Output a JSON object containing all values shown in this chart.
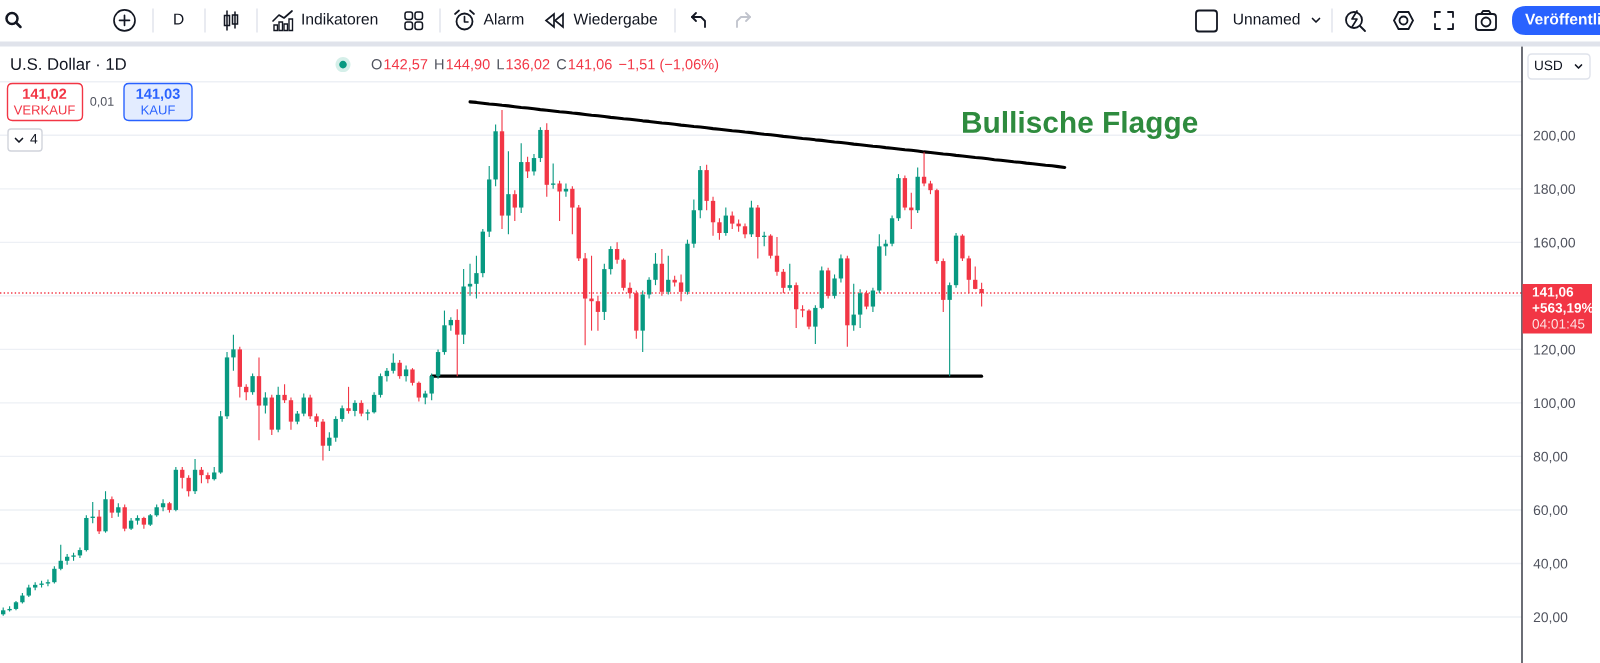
{
  "chart_data": {
    "type": "candlestick",
    "title": "U.S. Dollar · 1D",
    "annotations": [
      "D",
      "Indikatoren",
      "Alarm",
      "Wiedergabe",
      "Unnamed",
      "Veröffentli",
      "O",
      "142,57",
      "H",
      "144,90",
      "L",
      "136,02",
      "C",
      "141,06",
      "−1,51 (−1,06%)",
      "141,02",
      "VERKAUF",
      "0,01",
      "141,03",
      "KAUF",
      "4",
      "Bullische Flagge",
      "USD",
      "+563,19%",
      "04:01:45"
    ],
    "categories": [
      null,
      null,
      null,
      null,
      null,
      null,
      null,
      null,
      null,
      null,
      null,
      null,
      null,
      null,
      null,
      null,
      null,
      null,
      null,
      null,
      null,
      null,
      null,
      null,
      null,
      null,
      null,
      null,
      null,
      null,
      null,
      null,
      null,
      null,
      null,
      null,
      null,
      null,
      null,
      null,
      null,
      null,
      null,
      null,
      null,
      null,
      null,
      null,
      null,
      null,
      null,
      null,
      null,
      null,
      null,
      null,
      null,
      null,
      null,
      null,
      null,
      null,
      null,
      null,
      null,
      null,
      null,
      null,
      null,
      null,
      null,
      null,
      null,
      null,
      null,
      null,
      null,
      null,
      null,
      null,
      null,
      null,
      null,
      null,
      null,
      null,
      null,
      null,
      null,
      null,
      null,
      null,
      null,
      null,
      null,
      null,
      null,
      null,
      null,
      null,
      null,
      null,
      null,
      null,
      null,
      null,
      null,
      null,
      null,
      null,
      null,
      null,
      null,
      null,
      null,
      null,
      null,
      null,
      null,
      null,
      null,
      null,
      null,
      null,
      null,
      null,
      null,
      null,
      null,
      null,
      null,
      null,
      null,
      null,
      null,
      null,
      null,
      null,
      null,
      null,
      null,
      null,
      null,
      null,
      null,
      null,
      null,
      null,
      null,
      null,
      null,
      null,
      null,
      null,
      null,
      null,
      null,
      null,
      null,
      null,
      null,
      null,
      null,
      null,
      null,
      null,
      null,
      null,
      null,
      null,
      null,
      null,
      null,
      null,
      null,
      null,
      null,
      null,
      null,
      null,
      null,
      null,
      null,
      null,
      null,
      null,
      null,
      null,
      null,
      null,
      null,
      null,
      null,
      null,
      null,
      null,
      null,
      null,
      null,
      null,
      null,
      null,
      null,
      null,
      null,
      null,
      null,
      null,
      null,
      null,
      null,
      null,
      null,
      null,
      null,
      null,
      null,
      null,
      null,
      null,
      null,
      null,
      null,
      null,
      null,
      null,
      null,
      null,
      null,
      null,
      null,
      null,
      null,
      null,
      null,
      null,
      null,
      null
    ],
    "ohlc": [
      [
        21,
        23.5,
        20.5,
        22.5
      ],
      [
        22.5,
        24,
        22,
        23
      ],
      [
        23,
        26,
        22.5,
        25.5
      ],
      [
        25.5,
        29,
        25,
        28
      ],
      [
        28,
        32,
        27.5,
        31
      ],
      [
        31,
        33,
        30,
        32
      ],
      [
        32,
        33.5,
        31,
        32.5
      ],
      [
        32.5,
        34,
        31.5,
        33
      ],
      [
        33,
        39,
        32.5,
        38
      ],
      [
        38,
        47,
        37.5,
        41
      ],
      [
        41,
        43.5,
        39.5,
        42.5
      ],
      [
        42.5,
        44,
        41,
        43
      ],
      [
        43,
        46,
        42,
        45
      ],
      [
        45,
        58,
        44.5,
        57
      ],
      [
        57,
        63,
        55,
        57.5
      ],
      [
        57.5,
        60,
        51,
        52
      ],
      [
        52,
        67,
        51.5,
        64
      ],
      [
        64,
        65,
        57,
        59
      ],
      [
        59,
        62.5,
        57.5,
        61
      ],
      [
        61,
        62,
        52,
        53
      ],
      [
        53,
        57,
        52.5,
        56
      ],
      [
        56,
        58,
        54.5,
        57
      ],
      [
        57,
        57.5,
        53,
        54.5
      ],
      [
        54.5,
        58.5,
        54,
        58
      ],
      [
        58,
        62,
        57.5,
        61
      ],
      [
        61,
        64,
        59.5,
        62.5
      ],
      [
        62.5,
        63,
        59,
        60
      ],
      [
        60,
        76,
        59.5,
        75
      ],
      [
        75,
        76,
        68,
        72
      ],
      [
        72,
        73,
        65,
        67
      ],
      [
        67,
        79,
        66,
        75
      ],
      [
        75,
        76,
        70,
        73
      ],
      [
        73,
        74,
        70,
        71.5
      ],
      [
        71.5,
        76,
        71,
        74
      ],
      [
        74,
        97,
        73.5,
        95
      ],
      [
        95,
        119,
        94,
        117
      ],
      [
        117,
        125.5,
        112,
        120
      ],
      [
        120,
        121,
        102,
        106
      ],
      [
        106,
        107,
        101,
        104
      ],
      [
        104,
        111,
        103,
        110
      ],
      [
        110,
        117,
        86,
        99
      ],
      [
        99,
        104,
        96,
        102
      ],
      [
        102,
        103,
        88,
        90
      ],
      [
        90,
        106,
        89,
        103
      ],
      [
        103,
        107,
        100,
        101
      ],
      [
        101,
        102,
        90,
        93
      ],
      [
        93,
        97,
        92,
        96
      ],
      [
        96,
        103.5,
        95,
        102
      ],
      [
        102,
        103,
        94,
        95
      ],
      [
        95,
        96,
        91,
        93
      ],
      [
        93,
        94,
        78.5,
        84
      ],
      [
        84,
        89,
        82,
        87
      ],
      [
        87,
        95,
        85.5,
        94
      ],
      [
        94,
        99,
        93,
        98
      ],
      [
        98,
        106,
        96,
        97
      ],
      [
        97,
        101,
        95,
        100
      ],
      [
        100,
        101,
        95,
        96
      ],
      [
        96,
        97.5,
        93.5,
        96.5
      ],
      [
        96.5,
        104,
        96,
        103
      ],
      [
        103,
        111,
        102,
        110
      ],
      [
        110,
        113,
        108,
        112
      ],
      [
        112,
        118.5,
        111,
        115
      ],
      [
        115,
        116,
        109,
        110
      ],
      [
        110,
        114,
        108,
        112.5
      ],
      [
        112.5,
        113,
        106.5,
        107.5
      ],
      [
        107.5,
        108,
        100.5,
        102
      ],
      [
        102,
        104.5,
        99.5,
        103.5
      ],
      [
        103.5,
        111,
        101,
        110
      ],
      [
        110,
        120,
        109,
        119
      ],
      [
        119,
        134.5,
        118,
        129
      ],
      [
        129,
        132,
        127,
        131
      ],
      [
        131,
        135,
        110,
        125.5
      ],
      [
        125.5,
        150,
        122,
        143.5
      ],
      [
        143.5,
        152,
        140,
        144.5
      ],
      [
        144.5,
        155,
        139,
        148.5
      ],
      [
        148.5,
        165,
        147,
        164
      ],
      [
        164,
        188.5,
        162,
        183.5
      ],
      [
        183.5,
        204,
        181,
        201.5
      ],
      [
        201.5,
        209.5,
        165,
        170
      ],
      [
        170,
        194,
        163,
        178
      ],
      [
        178,
        179.5,
        168,
        173
      ],
      [
        173,
        197,
        171,
        190
      ],
      [
        190,
        192,
        184,
        186.5
      ],
      [
        186.5,
        193,
        185,
        191.5
      ],
      [
        191.5,
        203,
        190,
        202
      ],
      [
        202,
        204.5,
        177,
        181.5
      ],
      [
        181.5,
        189.5,
        180,
        182
      ],
      [
        182,
        183,
        168,
        179
      ],
      [
        179,
        182,
        177,
        180
      ],
      [
        180,
        181,
        163,
        173
      ],
      [
        173,
        174,
        153,
        154
      ],
      [
        154,
        156,
        121.5,
        139
      ],
      [
        139,
        155,
        127,
        138
      ],
      [
        138,
        140,
        127,
        134
      ],
      [
        134,
        152,
        131,
        150
      ],
      [
        150,
        158.5,
        148,
        157.5
      ],
      [
        157.5,
        160,
        152,
        153.5
      ],
      [
        153.5,
        154,
        142,
        143
      ],
      [
        143,
        145,
        139,
        141
      ],
      [
        141,
        142,
        124,
        127
      ],
      [
        127,
        142,
        119,
        140.5
      ],
      [
        140.5,
        147,
        139,
        146
      ],
      [
        146,
        156,
        144,
        152
      ],
      [
        152,
        157.5,
        140,
        141.5
      ],
      [
        141.5,
        155,
        140.5,
        146
      ],
      [
        146,
        147.5,
        143.5,
        145
      ],
      [
        145,
        148,
        138,
        141.5
      ],
      [
        141.5,
        161,
        140.5,
        159.5
      ],
      [
        159.5,
        176,
        158,
        172
      ],
      [
        172,
        188.5,
        169,
        187
      ],
      [
        187,
        189,
        172,
        175.5
      ],
      [
        175.5,
        177,
        162.5,
        167.5
      ],
      [
        167.5,
        169,
        161,
        163.5
      ],
      [
        163.5,
        173,
        162.5,
        170
      ],
      [
        170,
        171.5,
        165,
        167
      ],
      [
        167,
        168.5,
        164,
        166
      ],
      [
        166,
        167,
        161.5,
        163
      ],
      [
        163,
        175.5,
        162,
        173
      ],
      [
        173,
        174,
        154,
        162
      ],
      [
        162,
        164,
        158.5,
        162.5
      ],
      [
        162.5,
        163,
        154,
        155
      ],
      [
        155,
        162,
        147.5,
        149
      ],
      [
        149,
        150,
        141,
        143
      ],
      [
        143,
        152,
        142,
        144
      ],
      [
        144,
        145,
        128,
        135
      ],
      [
        135,
        136.5,
        132,
        134.5
      ],
      [
        134.5,
        135,
        127.5,
        128.5
      ],
      [
        128.5,
        136.5,
        122,
        135.5
      ],
      [
        135.5,
        151,
        135,
        149.5
      ],
      [
        149.5,
        150.5,
        139,
        140
      ],
      [
        140,
        148,
        139,
        146.5
      ],
      [
        146.5,
        155.5,
        145,
        154
      ],
      [
        154,
        155,
        121,
        129
      ],
      [
        129,
        144.5,
        127,
        133
      ],
      [
        133,
        142.5,
        128,
        141
      ],
      [
        141,
        142,
        135,
        136
      ],
      [
        136,
        143,
        134,
        142
      ],
      [
        142,
        163,
        141,
        158.5
      ],
      [
        158.5,
        161,
        155,
        159.5
      ],
      [
        159.5,
        170,
        158.5,
        169
      ],
      [
        169,
        185.5,
        168,
        184
      ],
      [
        184,
        185,
        172,
        173
      ],
      [
        173,
        178.5,
        165,
        172
      ],
      [
        172,
        188,
        171,
        184.5
      ],
      [
        184.5,
        193.7,
        181,
        182
      ],
      [
        182,
        183,
        178,
        179.5
      ],
      [
        179.5,
        180,
        152,
        153
      ],
      [
        153,
        154,
        134,
        138.5
      ],
      [
        138.5,
        145,
        110,
        144
      ],
      [
        144,
        163.5,
        143,
        162.5
      ],
      [
        162.5,
        163,
        153,
        154
      ],
      [
        154,
        155,
        141,
        146
      ],
      [
        146,
        151,
        142.5,
        142.6
      ],
      [
        142.57,
        144.9,
        136.02,
        141.06
      ],
      null,
      null,
      null,
      null,
      null,
      null,
      null,
      null,
      null,
      null,
      null,
      null,
      null,
      null,
      null,
      null,
      null,
      null,
      null,
      null,
      null,
      null,
      null,
      null,
      null,
      null,
      null,
      null,
      null,
      null,
      null,
      null,
      null,
      null,
      null,
      null,
      null,
      null,
      null,
      null,
      null,
      null,
      null,
      null,
      null,
      null,
      null,
      null,
      null,
      null,
      null,
      null,
      null,
      null,
      null,
      null,
      null,
      null,
      null,
      null,
      null,
      null,
      null,
      null,
      null,
      null,
      null,
      null,
      null,
      null,
      null,
      null,
      null,
      null,
      null,
      null,
      null,
      null,
      null,
      null,
      null,
      null,
      null,
      null
    ],
    "colors": [
      "#089981",
      "#089981",
      "#089981",
      "#089981",
      "#089981",
      "#089981",
      "#089981",
      "#089981",
      "#089981",
      "#089981",
      "#089981",
      "#089981",
      "#089981",
      "#089981",
      "#089981",
      "#f23645",
      "#089981",
      "#f23645",
      "#089981",
      "#f23645",
      "#089981",
      "#089981",
      "#f23645",
      "#089981",
      "#089981",
      "#089981",
      "#f23645",
      "#089981",
      "#f23645",
      "#f23645",
      "#089981",
      "#f23645",
      "#f23645",
      "#089981",
      "#089981",
      "#089981",
      "#089981",
      "#f23645",
      "#f23645",
      "#089981",
      "#f23645",
      "#089981",
      "#f23645",
      "#089981",
      "#f23645",
      "#f23645",
      "#089981",
      "#089981",
      "#f23645",
      "#f23645",
      "#f23645",
      "#089981",
      "#089981",
      "#089981",
      "#f23645",
      "#089981",
      "#f23645",
      "#089981",
      "#089981",
      "#089981",
      "#089981",
      "#089981",
      "#f23645",
      "#089981",
      "#f23645",
      "#f23645",
      "#089981",
      "#089981",
      "#089981",
      "#089981",
      "#089981",
      "#f23645",
      "#089981",
      "#089981",
      "#089981",
      "#089981",
      "#089981",
      "#089981",
      "#f23645",
      "#089981",
      "#f23645",
      "#089981",
      "#f23645",
      "#089981",
      "#089981",
      "#f23645",
      "#089981",
      "#f23645",
      "#089981",
      "#f23645",
      "#f23645",
      "#f23645",
      "#f23645",
      "#f23645",
      "#089981",
      "#089981",
      "#f23645",
      "#f23645",
      "#f23645",
      "#f23645",
      "#089981",
      "#089981",
      "#089981",
      "#f23645",
      "#089981",
      "#f23645",
      "#f23645",
      "#089981",
      "#089981",
      "#089981",
      "#f23645",
      "#f23645",
      "#f23645",
      "#089981",
      "#f23645",
      "#f23645",
      "#f23645",
      "#089981",
      "#f23645",
      "#089981",
      "#f23645",
      "#f23645",
      "#f23645",
      "#089981",
      "#f23645",
      "#f23645",
      "#f23645",
      "#089981",
      "#089981",
      "#f23645",
      "#089981",
      "#089981",
      "#f23645",
      "#089981",
      "#089981",
      "#f23645",
      "#089981",
      "#089981",
      "#089981",
      "#089981",
      "#089981",
      "#f23645",
      "#f23645",
      "#089981",
      "#f23645",
      "#f23645",
      "#f23645",
      "#f23645",
      "#089981",
      "#089981",
      "#f23645",
      "#f23645",
      "#f23645",
      "#f23645",
      null,
      null,
      null,
      null,
      null,
      null,
      null,
      null,
      null,
      null,
      null,
      null,
      null,
      null,
      null,
      null,
      null,
      null,
      null,
      null,
      null,
      null,
      null,
      null,
      null,
      null,
      null,
      null,
      null,
      null,
      null,
      null,
      null,
      null,
      null,
      null,
      null,
      null,
      null,
      null,
      null,
      null,
      null,
      null,
      null,
      null,
      null,
      null,
      null,
      null,
      null,
      null,
      null,
      null,
      null,
      null,
      null,
      null,
      null,
      null,
      null,
      null,
      null,
      null,
      null,
      null,
      null,
      null,
      null,
      null,
      null,
      null,
      null,
      null,
      null,
      null,
      null,
      null,
      null,
      null,
      null,
      null,
      null,
      null
    ],
    "series": [
      {
        "type": "line",
        "color": "#000000",
        "values": [
          null,
          null,
          null,
          null,
          null,
          null,
          null,
          null,
          null,
          null,
          null,
          null,
          null,
          null,
          null,
          null,
          null,
          null,
          null,
          null,
          null,
          null,
          null,
          null,
          null,
          null,
          null,
          null,
          null,
          null,
          null,
          null,
          null,
          null,
          null,
          null,
          null,
          null,
          null,
          null,
          null,
          null,
          null,
          null,
          null,
          null,
          null,
          null,
          null,
          null,
          null,
          null,
          null,
          null,
          null,
          null,
          null,
          null,
          null,
          null,
          null,
          null,
          null,
          null,
          null,
          null,
          null,
          null,
          null,
          null,
          null,
          null,
          null,
          212.5,
          212.3,
          212.0,
          211.7,
          211.5,
          211.2,
          211.0,
          210.7,
          210.4,
          210.2,
          209.9,
          209.6,
          209.4,
          209.1,
          208.8,
          208.6,
          208.3,
          208.1,
          207.8,
          207.5,
          207.3,
          207.0,
          206.7,
          206.5,
          206.2,
          206.0,
          205.7,
          205.4,
          205.2,
          204.9,
          204.6,
          204.4,
          204.1,
          203.8,
          203.6,
          203.3,
          203.1,
          202.8,
          202.5,
          202.3,
          202.0,
          201.7,
          201.5,
          201.2,
          201.0,
          200.7,
          200.4,
          200.2,
          199.9,
          199.6,
          199.4,
          199.1,
          198.8,
          198.6,
          198.3,
          198.1,
          197.8,
          197.5,
          197.3,
          197.0,
          196.7,
          196.5,
          196.2,
          195.9,
          195.7,
          195.4,
          195.2,
          194.9,
          194.6,
          194.4,
          194.1,
          193.8,
          193.6,
          193.3,
          193.0,
          192.8,
          192.5,
          192.3,
          192.0,
          191.7,
          191.5,
          191.2,
          190.9,
          190.7,
          190.4,
          190.1,
          189.9,
          189.6,
          189.4,
          189.1,
          188.8,
          188.6,
          188.3,
          188.0,
          null,
          null,
          null,
          null,
          null,
          null,
          null,
          null,
          null,
          null,
          null,
          null,
          null,
          null,
          null,
          null,
          null,
          null,
          null,
          null,
          null,
          null,
          null,
          null,
          null,
          null,
          null,
          null,
          null,
          null,
          null,
          null,
          null,
          null,
          null,
          null,
          null,
          null,
          null,
          null,
          null,
          null,
          null,
          null,
          null,
          null,
          null,
          null,
          null,
          null,
          null,
          null,
          null,
          null,
          null,
          null,
          null,
          null,
          null,
          null,
          null,
          null,
          null,
          null,
          null,
          null,
          null,
          null,
          null,
          null,
          null
        ]
      },
      {
        "type": "line",
        "color": "#000000",
        "values": [
          null,
          null,
          null,
          null,
          null,
          null,
          null,
          null,
          null,
          null,
          null,
          null,
          null,
          null,
          null,
          null,
          null,
          null,
          null,
          null,
          null,
          null,
          null,
          null,
          null,
          null,
          null,
          null,
          null,
          null,
          null,
          null,
          null,
          null,
          null,
          null,
          null,
          null,
          null,
          null,
          null,
          null,
          null,
          null,
          null,
          null,
          null,
          null,
          null,
          null,
          null,
          null,
          null,
          null,
          null,
          null,
          null,
          null,
          null,
          null,
          null,
          null,
          null,
          null,
          null,
          null,
          null,
          110,
          110,
          110,
          110,
          110,
          110,
          110,
          110,
          110,
          110,
          110,
          110,
          110,
          110,
          110,
          110,
          110,
          110,
          110,
          110,
          110,
          110,
          110,
          110,
          110,
          110,
          110,
          110,
          110,
          110,
          110,
          110,
          110,
          110,
          110,
          110,
          110,
          110,
          110,
          110,
          110,
          110,
          110,
          110,
          110,
          110,
          110,
          110,
          110,
          110,
          110,
          110,
          110,
          110,
          110,
          110,
          110,
          110,
          110,
          110,
          110,
          110,
          110,
          110,
          110,
          110,
          110,
          110,
          110,
          110,
          110,
          110,
          110,
          110,
          110,
          110,
          110,
          110,
          110,
          110,
          110,
          110,
          110,
          110,
          110,
          110,
          110,
          null,
          null,
          null,
          null,
          null,
          null,
          null,
          null,
          null,
          null,
          null,
          null,
          null,
          null,
          null,
          null,
          null,
          null,
          null,
          null,
          null,
          null,
          null,
          null,
          null,
          null,
          null,
          null,
          null,
          null,
          null,
          null,
          null,
          null,
          null,
          null,
          null,
          null,
          null,
          null,
          null,
          null,
          null,
          null,
          null,
          null,
          null,
          null,
          null,
          null,
          null,
          null,
          null,
          null,
          null,
          null,
          null,
          null,
          null,
          null,
          null,
          null,
          null,
          null,
          null,
          null,
          null,
          null,
          null,
          null,
          null,
          null,
          null,
          null,
          null,
          null,
          null,
          null,
          null,
          null,
          null,
          null,
          null,
          null
        ]
      }
    ],
    "ylim": [
      2.8,
      233
    ],
    "yticks": [
      {
        "value": 20,
        "label": "20,00"
      },
      {
        "value": 40,
        "label": "40,00"
      },
      {
        "value": 60,
        "label": "60,00"
      },
      {
        "value": 80,
        "label": "80,00"
      },
      {
        "value": 100,
        "label": "100,00"
      },
      {
        "value": 120,
        "label": "120,00"
      },
      {
        "value": 140,
        "label": null
      },
      {
        "value": 160,
        "label": "160,00"
      },
      {
        "value": 180,
        "label": "180,00"
      },
      {
        "value": 200,
        "label": "200,00"
      },
      {
        "value": 220,
        "label": null
      }
    ],
    "ref_lines": [
      {
        "axis": "y",
        "value": 141.06,
        "label": "141,06",
        "color": "#f23645",
        "line_style": "dotted"
      }
    ],
    "grid": "y",
    "tick_labels": "y"
  }
}
